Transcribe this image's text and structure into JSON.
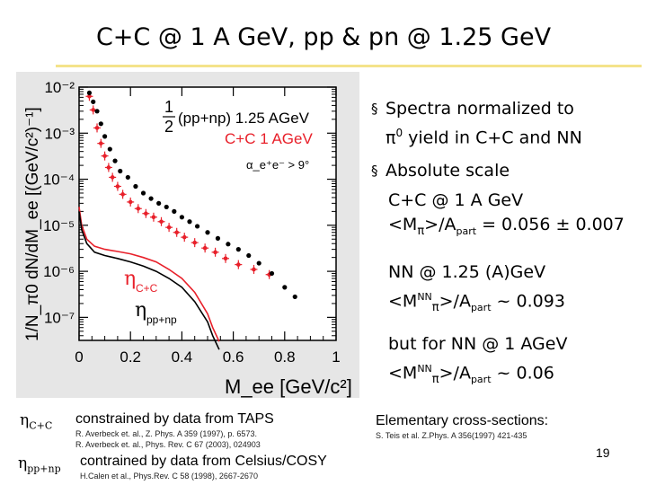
{
  "slide": {
    "title": "C+C @ 1 A GeV, pp & pn @ 1.25 GeV",
    "page_number": "19"
  },
  "bullets": [
    {
      "line1": "Spectra normalized to",
      "line2_symbol": "π",
      "line2_sup": "0",
      "line2_rest": " yield in C+C and NN"
    },
    {
      "line1": "Absolute scale"
    }
  ],
  "subtext": {
    "cc_line1": "C+C @ 1 A GeV",
    "cc_line2_pre": "<M",
    "cc_line2_sym": "π",
    "cc_line2_mid": ">/A",
    "cc_line2_sub": "part",
    "cc_line2_val": " = 0.056 ± 0.007",
    "nn_line1": "NN @ 1.25 (A)GeV",
    "nn_line2_pre": "<M",
    "nn_line2_sup": "NN",
    "nn_line2_sym": "π",
    "nn_line2_mid": ">/A",
    "nn_line2_sub": "part",
    "nn_line2_val": " ~ 0.093",
    "but_line1": "but for NN @ 1 AGeV",
    "but_line2_pre": "<M",
    "but_line2_sup": "NN",
    "but_line2_sym": "π",
    "but_line2_mid": ">/A",
    "but_line2_sub": "part",
    "but_line2_val": " ~ 0.06"
  },
  "footnotes": {
    "eta_cc_symbol": "η",
    "eta_cc_sub": "C+C",
    "eta_cc_text": "constrained by data from TAPS",
    "eta_cc_ref1": "R. Averbeck   et. al., Z. Phys. A 359 (1997), p. 6573.",
    "eta_cc_ref2": "R. Averbeck   et. al., Phys. Rev. C 67 (2003), 024903",
    "eta_pp_symbol": "η",
    "eta_pp_sub": "pp+np",
    "eta_pp_text": "contrained by data from Celsius/COSY",
    "eta_pp_ref": "H.Calen et al., Phys.Rev. C 58 (1998), 2667-2670",
    "elem_title": "Elementary cross-sections:",
    "elem_ref": "S. Teis et al. Z.Phys. A 356(1997) 421-435"
  },
  "chart_data": {
    "type": "scatter",
    "xlabel": "M_ee [GeV/c²]",
    "ylabel": "1/N_π0 dN/dM_ee [(GeV/c²)⁻¹]",
    "x_ticks": [
      "0",
      "0.2",
      "0.4",
      "0.6",
      "0.8",
      "1"
    ],
    "y_ticks": [
      "10⁻²",
      "10⁻³",
      "10⁻⁴",
      "10⁻⁵",
      "10⁻⁶",
      "10⁻⁷"
    ],
    "xlim": [
      0,
      1
    ],
    "ylim_log10": [
      -7.5,
      -2
    ],
    "y_scale": "log",
    "legend": {
      "pp_frac": "1/2",
      "pp_label": "(pp+np) 1.25 AGeV",
      "cc_label": "C+C 1 AGeV",
      "cut": "α_e⁺e⁻ > 9°"
    },
    "annotations": {
      "eta_cc": "η",
      "eta_cc_sub": "C+C",
      "eta_pp": "η",
      "eta_pp_sub": "pp+np"
    },
    "series": [
      {
        "name": "C+C 1 AGeV",
        "color": "#e8202a",
        "x": [
          0.04,
          0.055,
          0.07,
          0.085,
          0.1,
          0.115,
          0.13,
          0.15,
          0.17,
          0.2,
          0.23,
          0.26,
          0.29,
          0.32,
          0.35,
          0.38,
          0.41,
          0.45,
          0.49,
          0.53,
          0.57,
          0.62,
          0.68,
          0.74
        ],
        "y": [
          0.0063,
          0.0032,
          0.0013,
          0.0006,
          0.00032,
          0.00018,
          0.00011,
          7e-05,
          4.7e-05,
          3.2e-05,
          2.3e-05,
          1.8e-05,
          1.5e-05,
          1.2e-05,
          9e-06,
          7e-06,
          5.5e-06,
          4.2e-06,
          3.2e-06,
          2.6e-06,
          1.9e-06,
          1.4e-06,
          1.1e-06,
          8.5e-07
        ]
      },
      {
        "name": "1/2 (pp+np) 1.25 AGeV",
        "color": "#000000",
        "x": [
          0.04,
          0.055,
          0.07,
          0.085,
          0.1,
          0.12,
          0.14,
          0.16,
          0.19,
          0.22,
          0.25,
          0.28,
          0.31,
          0.34,
          0.37,
          0.4,
          0.43,
          0.46,
          0.5,
          0.54,
          0.58,
          0.62,
          0.66,
          0.7,
          0.75,
          0.8,
          0.84
        ],
        "y": [
          0.0075,
          0.0048,
          0.003,
          0.0016,
          0.00085,
          0.00045,
          0.00025,
          0.00015,
          0.00011,
          7e-05,
          5e-05,
          3.8e-05,
          3e-05,
          2.5e-05,
          2e-05,
          1.5e-05,
          1.2e-05,
          9.5e-06,
          7e-06,
          5.2e-06,
          3.9e-06,
          3e-06,
          2.2e-06,
          1.5e-06,
          9e-07,
          4.5e-07,
          2.8e-07
        ]
      }
    ],
    "curves": [
      {
        "name": "η C+C",
        "color": "#e8202a",
        "x": [
          0.0,
          0.01,
          0.03,
          0.06,
          0.1,
          0.15,
          0.2,
          0.25,
          0.3,
          0.35,
          0.4,
          0.45,
          0.5,
          0.52,
          0.545
        ],
        "y": [
          2.5e-05,
          1e-05,
          5e-06,
          3.5e-06,
          3e-06,
          2.7e-06,
          2.4e-06,
          2e-06,
          1.6e-06,
          1.1e-06,
          7e-07,
          3.5e-07,
          1.2e-07,
          6e-08,
          3e-08
        ]
      },
      {
        "name": "η pp+np",
        "color": "#000000",
        "x": [
          0.0,
          0.01,
          0.03,
          0.06,
          0.1,
          0.15,
          0.2,
          0.25,
          0.3,
          0.35,
          0.4,
          0.45,
          0.5,
          0.52,
          0.545
        ],
        "y": [
          2e-05,
          8e-06,
          4e-06,
          2.6e-06,
          2.2e-06,
          1.9e-06,
          1.6e-06,
          1.3e-06,
          1e-06,
          7e-07,
          4.5e-07,
          2.2e-07,
          8e-08,
          4e-08,
          2e-08
        ]
      }
    ]
  }
}
